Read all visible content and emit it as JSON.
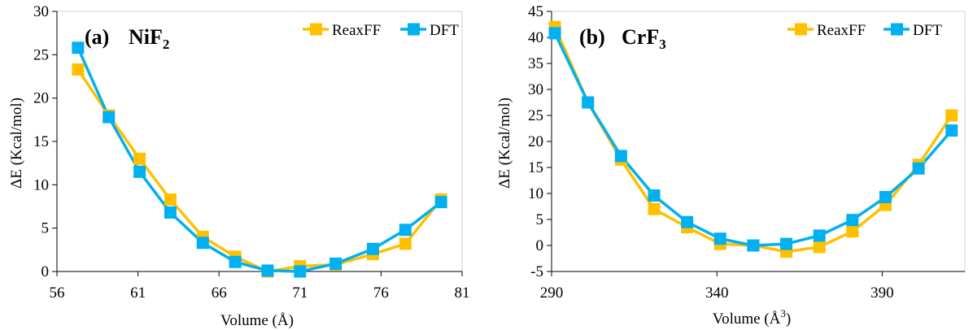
{
  "chart_data": [
    {
      "type": "line",
      "panel": "(a)",
      "title_main": "NiF",
      "title_sub": "2",
      "xlabel": "Volume (Å)",
      "xlabel_sup": "",
      "ylabel": "ΔE (Kcal/mol)",
      "xlim": [
        56,
        81
      ],
      "ylim": [
        0,
        30
      ],
      "xticks": [
        56,
        61,
        66,
        71,
        76,
        81
      ],
      "yticks": [
        0,
        5,
        10,
        15,
        20,
        25,
        30
      ],
      "legend_position": "top-right",
      "series": [
        {
          "name": "ReaxFF",
          "color": "#FFC000",
          "x": [
            57.3,
            59.2,
            61.1,
            63.0,
            65.0,
            67.0,
            69.0,
            71.0,
            73.2,
            75.5,
            77.5,
            79.7
          ],
          "y": [
            23.3,
            18.0,
            13.0,
            8.3,
            4.0,
            1.7,
            0.0,
            0.6,
            0.8,
            2.0,
            3.2,
            8.3
          ]
        },
        {
          "name": "DFT",
          "color": "#00B0F0",
          "x": [
            57.3,
            59.2,
            61.1,
            63.0,
            65.0,
            67.0,
            69.0,
            71.0,
            73.2,
            75.5,
            77.5,
            79.7
          ],
          "y": [
            25.8,
            17.8,
            11.5,
            6.8,
            3.3,
            1.1,
            0.1,
            0.0,
            0.9,
            2.6,
            4.8,
            8.0
          ]
        }
      ]
    },
    {
      "type": "line",
      "panel": "(b)",
      "title_main": "CrF",
      "title_sub": "3",
      "xlabel": "Volume (Å",
      "xlabel_sup": "3",
      "xlabel_end": ")",
      "ylabel": "ΔE (Kcal/mol)",
      "xlim": [
        290,
        415
      ],
      "ylim": [
        -5,
        45
      ],
      "xticks": [
        290,
        340,
        390
      ],
      "yticks": [
        -5,
        0,
        5,
        10,
        15,
        20,
        25,
        30,
        35,
        40,
        45
      ],
      "legend_position": "top-right",
      "series": [
        {
          "name": "ReaxFF",
          "color": "#FFC000",
          "x": [
            291,
            301,
            311,
            321,
            331,
            341,
            351,
            361,
            371,
            381,
            391,
            401,
            411
          ],
          "y": [
            42.0,
            27.5,
            16.5,
            7.0,
            3.5,
            0.3,
            0.0,
            -1.2,
            -0.3,
            2.7,
            7.8,
            15.5,
            25.0
          ]
        },
        {
          "name": "DFT",
          "color": "#00B0F0",
          "x": [
            291,
            301,
            311,
            321,
            331,
            341,
            351,
            361,
            371,
            381,
            391,
            401,
            411
          ],
          "y": [
            40.8,
            27.5,
            17.2,
            9.6,
            4.5,
            1.3,
            0.0,
            0.3,
            1.9,
            4.9,
            9.3,
            14.8,
            22.1
          ]
        }
      ]
    }
  ]
}
